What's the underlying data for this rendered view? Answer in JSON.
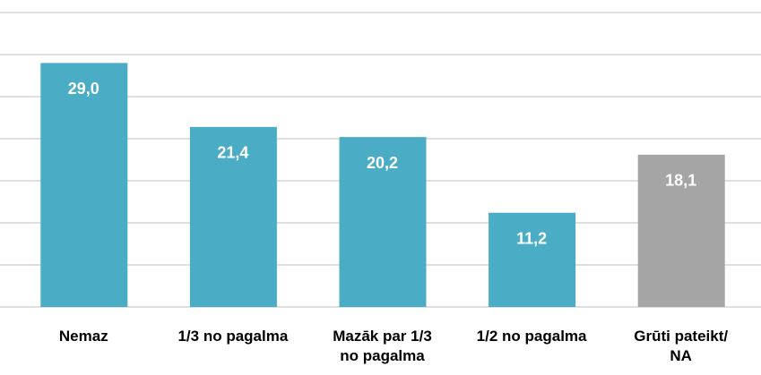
{
  "chart_data": {
    "type": "bar",
    "categories": [
      "Nemaz",
      "1/3 no pagalma",
      "Mazāk par 1/3\nno pagalma",
      "1/2 no pagalma",
      "Grūti pateikt/\nNA"
    ],
    "values": [
      29.0,
      21.4,
      20.2,
      11.2,
      18.1
    ],
    "value_labels": [
      "29,0",
      "21,4",
      "20,2",
      "11,2",
      "18,1"
    ],
    "colors": [
      "#4bacc6",
      "#4bacc6",
      "#4bacc6",
      "#4bacc6",
      "#a5a5a5"
    ],
    "ylim": [
      0,
      35
    ],
    "yticks": [
      0,
      5,
      10,
      15,
      20,
      25,
      30,
      35
    ],
    "grid": true
  }
}
